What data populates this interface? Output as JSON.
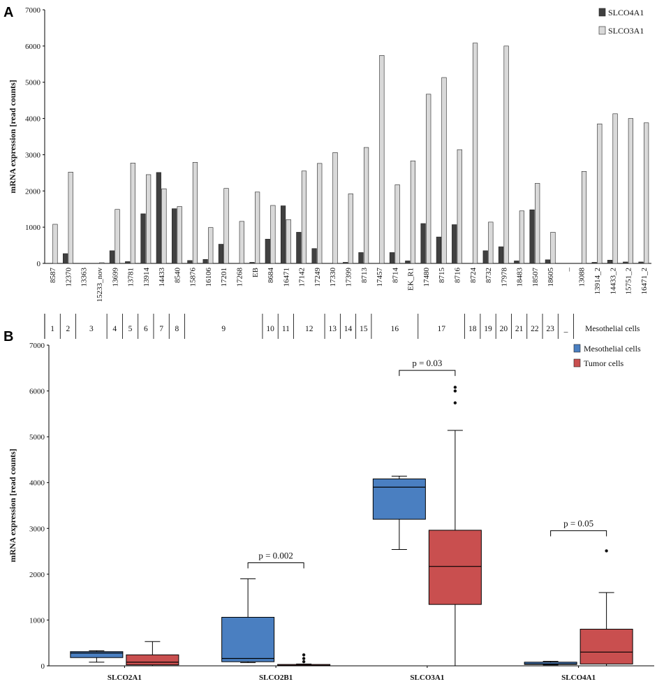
{
  "chart_data": [
    {
      "panel": "A",
      "type": "bar",
      "ylabel": "mRNA expression [read counts]",
      "ylim": [
        0,
        7000
      ],
      "yticks": [
        0,
        1000,
        2000,
        3000,
        4000,
        5000,
        6000,
        7000
      ],
      "legend": {
        "position": "top-right",
        "entries": [
          "SLCO4A1",
          "SLCO3A1"
        ]
      },
      "colors": {
        "SLCO4A1": "#404040",
        "SLCO3A1": "#d9d9d9"
      },
      "categories": [
        "8587",
        "12370",
        "13363",
        "15233_nov",
        "13699",
        "13781",
        "13914",
        "14433",
        "8540",
        "15876",
        "16106",
        "17201",
        "17268",
        "EB",
        "8684",
        "16471",
        "17142",
        "17249",
        "17330",
        "17399",
        "8713",
        "17457",
        "8714",
        "EK_R1",
        "17480",
        "8715",
        "8716",
        "8724",
        "8732",
        "17978",
        "18483",
        "18507",
        "18605",
        "_",
        "13088",
        "13914_2",
        "14433_2",
        "15751_2",
        "16471_2"
      ],
      "series": [
        {
          "name": "SLCO4A1",
          "values": [
            0,
            270,
            0,
            0,
            350,
            50,
            1370,
            2510,
            1510,
            80,
            110,
            530,
            0,
            30,
            670,
            1590,
            860,
            410,
            0,
            30,
            300,
            0,
            300,
            70,
            1100,
            730,
            1070,
            0,
            350,
            460,
            70,
            1480,
            100,
            0,
            0,
            30,
            90,
            40,
            40
          ]
        },
        {
          "name": "SLCO3A1",
          "values": [
            1080,
            2520,
            0,
            20,
            1490,
            2770,
            2450,
            2060,
            1570,
            2790,
            990,
            2070,
            1160,
            1970,
            1600,
            1210,
            2550,
            2760,
            3060,
            1920,
            3200,
            5740,
            2170,
            2830,
            4670,
            5130,
            3140,
            6080,
            1140,
            6000,
            1450,
            2210,
            860,
            0,
            2540,
            3850,
            4130,
            4000,
            3880
          ]
        }
      ],
      "groups": [
        {
          "label": "1",
          "span": 1
        },
        {
          "label": "2",
          "span": 1
        },
        {
          "label": "3",
          "span": 2
        },
        {
          "label": "4",
          "span": 1
        },
        {
          "label": "5",
          "span": 1
        },
        {
          "label": "6",
          "span": 1
        },
        {
          "label": "7",
          "span": 1
        },
        {
          "label": "8",
          "span": 1
        },
        {
          "label": "9",
          "span": 5
        },
        {
          "label": "10",
          "span": 1
        },
        {
          "label": "11",
          "span": 1
        },
        {
          "label": "12",
          "span": 2
        },
        {
          "label": "13",
          "span": 1
        },
        {
          "label": "14",
          "span": 1
        },
        {
          "label": "15",
          "span": 1
        },
        {
          "label": "16",
          "span": 3
        },
        {
          "label": "17",
          "span": 3
        },
        {
          "label": "18",
          "span": 1
        },
        {
          "label": "19",
          "span": 1
        },
        {
          "label": "20",
          "span": 1
        },
        {
          "label": "21",
          "span": 1
        },
        {
          "label": "22",
          "span": 1
        },
        {
          "label": "23",
          "span": 1
        },
        {
          "label": "_",
          "span": 1
        },
        {
          "label": "Mesothelial cells",
          "span": 5
        }
      ]
    },
    {
      "panel": "B",
      "type": "box",
      "ylabel": "mRNA expression [read counts]",
      "ylim": [
        0,
        7000
      ],
      "yticks": [
        0,
        1000,
        2000,
        3000,
        4000,
        5000,
        6000,
        7000
      ],
      "legend": {
        "position": "top-right",
        "entries": [
          "Mesothelial cells",
          "Tumor cells"
        ]
      },
      "colors": {
        "Mesothelial cells": "#4a7fc1",
        "Tumor cells": "#c94f4f"
      },
      "categories": [
        "SLCO2A1",
        "SLCO2B1",
        "SLCO3A1",
        "SLCO4A1"
      ],
      "series": [
        {
          "name": "Mesothelial cells",
          "boxes": [
            {
              "min": 80,
              "q1": 180,
              "median": 280,
              "q3": 310,
              "max": 330,
              "outliers": []
            },
            {
              "min": 70,
              "q1": 90,
              "median": 160,
              "q3": 1060,
              "max": 1900,
              "outliers": []
            },
            {
              "min": 2540,
              "q1": 3200,
              "median": 3900,
              "q3": 4080,
              "max": 4140,
              "outliers": []
            },
            {
              "min": 20,
              "q1": 30,
              "median": 40,
              "q3": 80,
              "max": 100,
              "outliers": []
            }
          ]
        },
        {
          "name": "Tumor cells",
          "boxes": [
            {
              "min": 0,
              "q1": 20,
              "median": 80,
              "q3": 240,
              "max": 530,
              "outliers": []
            },
            {
              "min": 0,
              "q1": 0,
              "median": 10,
              "q3": 30,
              "max": 40,
              "outliers": [
                90,
                160,
                240
              ]
            },
            {
              "min": 0,
              "q1": 1340,
              "median": 2170,
              "q3": 2960,
              "max": 5140,
              "outliers": [
                5740,
                6000,
                6080
              ]
            },
            {
              "min": 0,
              "q1": 40,
              "median": 300,
              "q3": 800,
              "max": 1600,
              "outliers": [
                2510
              ]
            }
          ]
        }
      ],
      "annotations": [
        {
          "category": "SLCO2B1",
          "text": "p = 0.002",
          "bracket_value": 2250
        },
        {
          "category": "SLCO3A1",
          "text": "p = 0.03",
          "bracket_value": 6450
        },
        {
          "category": "SLCO4A1",
          "text": "p = 0.05",
          "bracket_value": 2950
        }
      ]
    }
  ]
}
